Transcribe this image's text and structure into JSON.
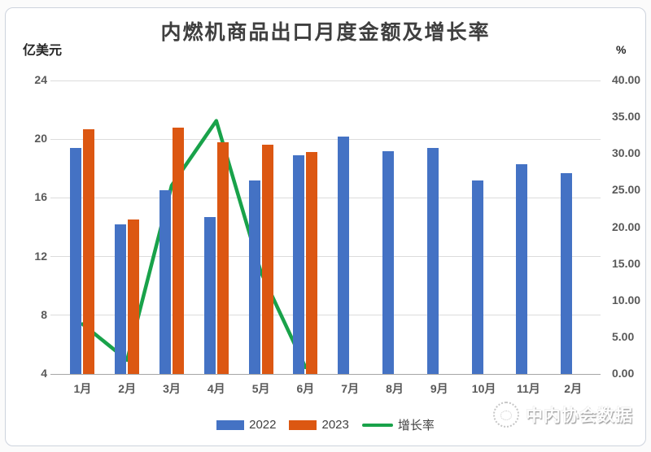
{
  "title": "内燃机商品出口月度金额及增长率",
  "left_axis": {
    "label": "亿美元",
    "ticks": [
      24,
      20,
      16,
      12,
      8,
      4
    ],
    "min": 4,
    "max": 24
  },
  "right_axis": {
    "label": "%",
    "ticks": [
      "40.00",
      "35.00",
      "30.00",
      "25.00",
      "20.00",
      "15.00",
      "10.00",
      "5.00",
      "0.00"
    ],
    "min": 0,
    "max": 40
  },
  "legend": [
    {
      "label": "2022",
      "color": "#4472C4",
      "type": "bar"
    },
    {
      "label": "2023",
      "color": "#DC5712",
      "type": "bar"
    },
    {
      "label": "增长率",
      "color": "#19A24A",
      "type": "line"
    }
  ],
  "watermark": {
    "text": "中内协会数据",
    "logo": "association-logo"
  },
  "colors": {
    "bar_2022": "#4472C4",
    "bar_2023": "#DC5712",
    "growth_line": "#19A24A",
    "gridline": "#dcdcdc",
    "axis_text": "#595959",
    "title_text": "#3f3f3f"
  },
  "chart_data": {
    "type": "bar",
    "subtype": "grouped bars with overlay line",
    "title": "内燃机商品出口月度金额及增长率",
    "categories": [
      "1月",
      "2月",
      "3月",
      "4月",
      "5月",
      "6月",
      "7月",
      "8月",
      "9月",
      "10月",
      "11月",
      "2月"
    ],
    "series": [
      {
        "name": "2022",
        "type": "bar",
        "axis": "left",
        "color": "#4472C4",
        "values": [
          19.4,
          14.2,
          16.5,
          14.7,
          17.2,
          18.9,
          20.2,
          19.2,
          19.4,
          17.2,
          18.3,
          17.7
        ]
      },
      {
        "name": "2023",
        "type": "bar",
        "axis": "left",
        "color": "#DC5712",
        "values": [
          20.7,
          14.5,
          20.8,
          19.8,
          19.6,
          19.1,
          null,
          null,
          null,
          null,
          null,
          null
        ]
      },
      {
        "name": "增长率",
        "type": "line",
        "axis": "right",
        "color": "#19A24A",
        "values": [
          6.8,
          1.9,
          25.7,
          34.5,
          13.9,
          0.9,
          null,
          null,
          null,
          null,
          null,
          null
        ]
      }
    ],
    "left_ylabel": "亿美元",
    "right_ylabel": "%",
    "left_ylim": [
      4,
      24
    ],
    "right_ylim": [
      0,
      40
    ],
    "left_ticks": [
      24,
      20,
      16,
      12,
      8,
      4
    ],
    "right_ticks": [
      40,
      35,
      30,
      25,
      20,
      15,
      10,
      5,
      0
    ],
    "grid": true,
    "legend_position": "bottom"
  }
}
